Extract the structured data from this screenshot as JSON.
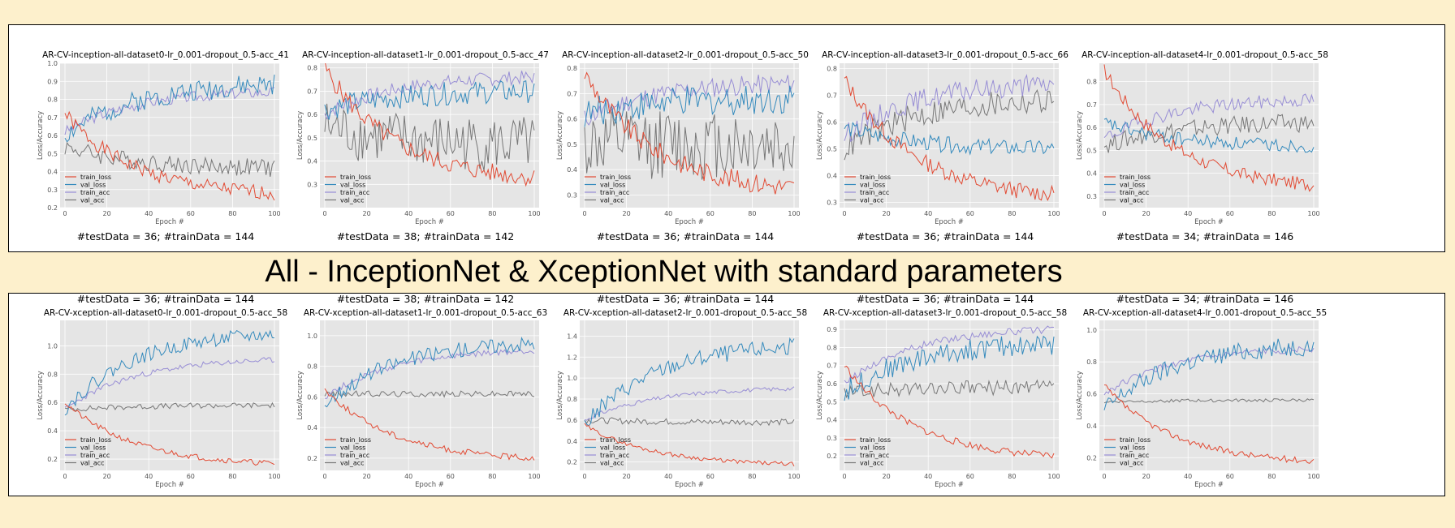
{
  "banner": "All - InceptionNet & XceptionNet with standard parameters",
  "colors": {
    "train_loss": "#e24a33",
    "val_loss": "#348abd",
    "train_acc": "#988ed5",
    "val_acc": "#777777",
    "panel_bg": "#e5e5e5",
    "page_bg": "#fdf0cc"
  },
  "rows": [
    {
      "name": "inception",
      "caption_position": "below",
      "charts": [
        {
          "title": "AR-CV-inception-all-dataset0-lr_0.001-dropout_0.5-acc_41",
          "caption": "#testData = 36; #trainData = 144",
          "xlabel": "Epoch #",
          "ylabel": "Loss/Accuracy",
          "xlim": [
            0,
            100
          ],
          "ylim": [
            0.2,
            1.0
          ],
          "yticks": [
            0.2,
            0.3,
            0.4,
            0.5,
            0.6,
            0.7,
            0.8,
            0.9,
            1.0
          ],
          "xticks": [
            0,
            20,
            40,
            60,
            80,
            100
          ],
          "legend": [
            "train_loss",
            "val_loss",
            "train_acc",
            "val_acc"
          ],
          "series": {
            "train_loss": {
              "start": 0.72,
              "end": 0.28,
              "noise": 0.04,
              "seed": 1
            },
            "val_loss": {
              "start": 0.6,
              "end": 0.88,
              "noise": 0.06,
              "seed": 2
            },
            "train_acc": {
              "start": 0.62,
              "end": 0.84,
              "noise": 0.03,
              "seed": 3
            },
            "val_acc": {
              "start": 0.54,
              "end": 0.42,
              "noise": 0.05,
              "seed": 4
            }
          }
        },
        {
          "title": "AR-CV-inception-all-dataset1-lr_0.001-dropout_0.5-acc_47",
          "caption": "#testData = 38; #trainData = 142",
          "xlabel": "Epoch #",
          "ylabel": "Loss/Accuracy",
          "xlim": [
            0,
            100
          ],
          "ylim": [
            0.2,
            0.82
          ],
          "yticks": [
            0.3,
            0.4,
            0.5,
            0.6,
            0.7,
            0.8
          ],
          "xticks": [
            0,
            20,
            40,
            60,
            80,
            100
          ],
          "legend": [
            "train_loss",
            "val_loss",
            "train_acc",
            "val_acc"
          ],
          "series": {
            "train_loss": {
              "start": 0.8,
              "end": 0.33,
              "noise": 0.04,
              "seed": 5
            },
            "val_loss": {
              "start": 0.62,
              "end": 0.7,
              "noise": 0.05,
              "seed": 6
            },
            "train_acc": {
              "start": 0.6,
              "end": 0.76,
              "noise": 0.03,
              "seed": 7
            },
            "val_acc": {
              "start": 0.55,
              "end": 0.47,
              "noise": 0.12,
              "seed": 8
            }
          }
        },
        {
          "title": "AR-CV-inception-all-dataset2-lr_0.001-dropout_0.5-acc_50",
          "caption": "#testData = 36; #trainData = 144",
          "xlabel": "Epoch #",
          "ylabel": "Loss/Accuracy",
          "xlim": [
            0,
            100
          ],
          "ylim": [
            0.25,
            0.82
          ],
          "yticks": [
            0.3,
            0.4,
            0.5,
            0.6,
            0.7,
            0.8
          ],
          "xticks": [
            0,
            20,
            40,
            60,
            80,
            100
          ],
          "legend": [
            "train_loss",
            "val_loss",
            "train_acc",
            "val_acc"
          ],
          "series": {
            "train_loss": {
              "start": 0.78,
              "end": 0.33,
              "noise": 0.04,
              "seed": 9
            },
            "val_loss": {
              "start": 0.62,
              "end": 0.68,
              "noise": 0.06,
              "seed": 10
            },
            "train_acc": {
              "start": 0.6,
              "end": 0.74,
              "noise": 0.04,
              "seed": 11
            },
            "val_acc": {
              "start": 0.5,
              "end": 0.5,
              "noise": 0.14,
              "seed": 12
            }
          }
        },
        {
          "title": "AR-CV-inception-all-dataset3-lr_0.001-dropout_0.5-acc_66",
          "caption": "#testData = 36; #trainData = 144",
          "xlabel": "Epoch #",
          "ylabel": "Loss/Accuracy",
          "xlim": [
            0,
            100
          ],
          "ylim": [
            0.28,
            0.82
          ],
          "yticks": [
            0.3,
            0.4,
            0.5,
            0.6,
            0.7,
            0.8
          ],
          "xticks": [
            0,
            20,
            40,
            60,
            80,
            100
          ],
          "legend": [
            "train_loss",
            "val_loss",
            "train_acc",
            "val_acc"
          ],
          "series": {
            "train_loss": {
              "start": 0.76,
              "end": 0.33,
              "noise": 0.03,
              "seed": 13
            },
            "val_loss": {
              "start": 0.58,
              "end": 0.5,
              "noise": 0.03,
              "seed": 14
            },
            "train_acc": {
              "start": 0.55,
              "end": 0.74,
              "noise": 0.04,
              "seed": 15
            },
            "val_acc": {
              "start": 0.5,
              "end": 0.68,
              "noise": 0.05,
              "seed": 16
            }
          }
        },
        {
          "title": "AR-CV-inception-all-dataset4-lr_0.001-dropout_0.5-acc_58",
          "caption": "#testData = 34; #trainData = 146",
          "xlabel": "Epoch #",
          "ylabel": "Loss/Accuracy",
          "xlim": [
            0,
            100
          ],
          "ylim": [
            0.25,
            0.88
          ],
          "yticks": [
            0.3,
            0.4,
            0.5,
            0.6,
            0.7,
            0.8
          ],
          "xticks": [
            0,
            20,
            40,
            60,
            80,
            100
          ],
          "legend": [
            "train_loss",
            "val_loss",
            "train_acc",
            "val_acc"
          ],
          "series": {
            "train_loss": {
              "start": 0.85,
              "end": 0.35,
              "noise": 0.03,
              "seed": 17
            },
            "val_loss": {
              "start": 0.62,
              "end": 0.52,
              "noise": 0.03,
              "seed": 18
            },
            "train_acc": {
              "start": 0.55,
              "end": 0.72,
              "noise": 0.03,
              "seed": 19
            },
            "val_acc": {
              "start": 0.52,
              "end": 0.62,
              "noise": 0.04,
              "seed": 20
            }
          }
        }
      ]
    },
    {
      "name": "xception",
      "caption_position": "above",
      "charts": [
        {
          "title": "AR-CV-xception-all-dataset0-lr_0.001-dropout_0.5-acc_58",
          "caption": "#testData = 36; #trainData = 144",
          "xlabel": "Epoch #",
          "ylabel": "Loss/Accuracy",
          "xlim": [
            0,
            100
          ],
          "ylim": [
            0.12,
            1.18
          ],
          "yticks": [
            0.2,
            0.4,
            0.6,
            0.8,
            1.0
          ],
          "xticks": [
            0,
            20,
            40,
            60,
            80,
            100
          ],
          "legend": [
            "train_loss",
            "val_loss",
            "train_acc",
            "val_acc"
          ],
          "series": {
            "train_loss": {
              "start": 0.6,
              "end": 0.17,
              "noise": 0.02,
              "seed": 21
            },
            "val_loss": {
              "start": 0.55,
              "end": 1.08,
              "noise": 0.05,
              "seed": 22
            },
            "train_acc": {
              "start": 0.55,
              "end": 0.9,
              "noise": 0.02,
              "seed": 23
            },
            "val_acc": {
              "start": 0.55,
              "end": 0.58,
              "noise": 0.02,
              "seed": 24
            }
          }
        },
        {
          "title": "AR-CV-xception-all-dataset1-lr_0.001-dropout_0.5-acc_63",
          "caption": "#testData = 38; #trainData = 142",
          "xlabel": "Epoch #",
          "ylabel": "Loss/Accuracy",
          "xlim": [
            0,
            100
          ],
          "ylim": [
            0.12,
            1.1
          ],
          "yticks": [
            0.2,
            0.4,
            0.6,
            0.8,
            1.0
          ],
          "xticks": [
            0,
            20,
            40,
            60,
            80,
            100
          ],
          "legend": [
            "train_loss",
            "val_loss",
            "train_acc",
            "val_acc"
          ],
          "series": {
            "train_loss": {
              "start": 0.65,
              "end": 0.2,
              "noise": 0.02,
              "seed": 25
            },
            "val_loss": {
              "start": 0.55,
              "end": 0.95,
              "noise": 0.05,
              "seed": 26
            },
            "train_acc": {
              "start": 0.6,
              "end": 0.9,
              "noise": 0.02,
              "seed": 27
            },
            "val_acc": {
              "start": 0.62,
              "end": 0.62,
              "noise": 0.02,
              "seed": 28
            }
          }
        },
        {
          "title": "AR-CV-xception-all-dataset2-lr_0.001-dropout_0.5-acc_58",
          "caption": "#testData = 36; #trainData = 144",
          "xlabel": "Epoch #",
          "ylabel": "Loss/Accuracy",
          "xlim": [
            0,
            100
          ],
          "ylim": [
            0.12,
            1.55
          ],
          "yticks": [
            0.2,
            0.4,
            0.6,
            0.8,
            1.0,
            1.2,
            1.4
          ],
          "xticks": [
            0,
            20,
            40,
            60,
            80,
            100
          ],
          "legend": [
            "train_loss",
            "val_loss",
            "train_acc",
            "val_acc"
          ],
          "series": {
            "train_loss": {
              "start": 0.55,
              "end": 0.18,
              "noise": 0.02,
              "seed": 29
            },
            "val_loss": {
              "start": 0.55,
              "end": 1.3,
              "noise": 0.08,
              "seed": 30
            },
            "train_acc": {
              "start": 0.6,
              "end": 0.9,
              "noise": 0.02,
              "seed": 31
            },
            "val_acc": {
              "start": 0.6,
              "end": 0.58,
              "noise": 0.03,
              "seed": 32
            }
          }
        },
        {
          "title": "AR-CV-xception-all-dataset3-lr_0.001-dropout_0.5-acc_58",
          "caption": "#testData = 36; #trainData = 144",
          "xlabel": "Epoch #",
          "ylabel": "Loss/Accuracy",
          "xlim": [
            0,
            100
          ],
          "ylim": [
            0.12,
            0.95
          ],
          "yticks": [
            0.2,
            0.3,
            0.4,
            0.5,
            0.6,
            0.7,
            0.8,
            0.9
          ],
          "xticks": [
            0,
            20,
            40,
            60,
            80,
            100
          ],
          "legend": [
            "train_loss",
            "val_loss",
            "train_acc",
            "val_acc"
          ],
          "series": {
            "train_loss": {
              "start": 0.7,
              "end": 0.2,
              "noise": 0.02,
              "seed": 33
            },
            "val_loss": {
              "start": 0.55,
              "end": 0.82,
              "noise": 0.06,
              "seed": 34
            },
            "train_acc": {
              "start": 0.6,
              "end": 0.9,
              "noise": 0.02,
              "seed": 35
            },
            "val_acc": {
              "start": 0.55,
              "end": 0.58,
              "noise": 0.04,
              "seed": 36
            }
          }
        },
        {
          "title": "AR-CV-xception-all-dataset4-lr_0.001-dropout_0.5-acc_55",
          "caption": "#testData = 34; #trainData = 146",
          "xlabel": "Epoch #",
          "ylabel": "Loss/Accuracy",
          "xlim": [
            0,
            100
          ],
          "ylim": [
            0.12,
            1.06
          ],
          "yticks": [
            0.2,
            0.4,
            0.6,
            0.8,
            1.0
          ],
          "xticks": [
            0,
            20,
            40,
            60,
            80,
            100
          ],
          "legend": [
            "train_loss",
            "val_loss",
            "train_acc",
            "val_acc"
          ],
          "series": {
            "train_loss": {
              "start": 0.65,
              "end": 0.18,
              "noise": 0.02,
              "seed": 37
            },
            "val_loss": {
              "start": 0.5,
              "end": 0.9,
              "noise": 0.06,
              "seed": 38
            },
            "train_acc": {
              "start": 0.6,
              "end": 0.88,
              "noise": 0.02,
              "seed": 39
            },
            "val_acc": {
              "start": 0.55,
              "end": 0.56,
              "noise": 0.01,
              "seed": 40
            }
          }
        }
      ]
    }
  ]
}
